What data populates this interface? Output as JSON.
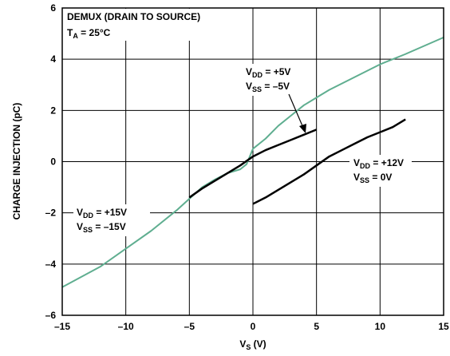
{
  "chart_data": {
    "type": "line",
    "title": "DEMUX (DRAIN TO SOURCE)",
    "subtitle": {
      "base": "T",
      "sub": "A",
      "text": " = 25°C"
    },
    "x_label": {
      "base": "V",
      "sub": "S",
      "text": " (V)"
    },
    "y_label": "CHARGE INJECTION (pC)",
    "xlim": [
      -15,
      15
    ],
    "ylim": [
      -6,
      6
    ],
    "xticks": [
      {
        "value": -15,
        "label": "–15"
      },
      {
        "value": -10,
        "label": "–10"
      },
      {
        "value": -5,
        "label": "–5"
      },
      0,
      5,
      10,
      15
    ],
    "yticks": [
      {
        "value": -6,
        "label": "–6"
      },
      {
        "value": -4,
        "label": "–4"
      },
      {
        "value": -2,
        "label": "–2"
      },
      0,
      2,
      4,
      6
    ],
    "grid": true,
    "series": [
      {
        "color": "#5fae90",
        "x": [
          -15,
          -12,
          -10,
          -8,
          -6,
          -5,
          -4,
          -3,
          -2,
          -1,
          -0.5,
          0,
          1,
          2,
          3,
          4,
          5,
          6,
          8,
          10,
          12,
          15
        ],
        "values": [
          -4.9,
          -4.1,
          -3.4,
          -2.7,
          -1.9,
          -1.45,
          -1.0,
          -0.7,
          -0.45,
          -0.3,
          -0.1,
          0.5,
          0.9,
          1.4,
          1.8,
          2.2,
          2.5,
          2.8,
          3.3,
          3.8,
          4.2,
          4.85
        ]
      },
      {
        "color": "#000000",
        "x": [
          -5,
          -4,
          -3,
          -2,
          -1,
          0,
          1,
          2,
          3,
          4,
          5
        ],
        "values": [
          -1.4,
          -1.05,
          -0.75,
          -0.45,
          -0.15,
          0.2,
          0.45,
          0.65,
          0.85,
          1.05,
          1.25
        ]
      },
      {
        "color": "#000000",
        "x": [
          0,
          1,
          2,
          3,
          4,
          5,
          6,
          7,
          8,
          9,
          10,
          11,
          12
        ],
        "values": [
          -1.65,
          -1.4,
          -1.1,
          -0.8,
          -0.5,
          -0.15,
          0.2,
          0.45,
          0.7,
          0.95,
          1.15,
          1.35,
          1.65
        ]
      }
    ],
    "annotations": [
      [
        {
          "base": "V",
          "sub": "DD",
          "text": " = +5V"
        },
        {
          "base": "V",
          "sub": "SS",
          "text": " = –5V"
        }
      ],
      [
        {
          "base": "V",
          "sub": "DD",
          "text": " = +12V"
        },
        {
          "base": "V",
          "sub": "SS",
          "text": " = 0V"
        }
      ],
      [
        {
          "base": "V",
          "sub": "DD",
          "text": " = +15V"
        },
        {
          "base": "V",
          "sub": "SS",
          "text": " = –15V"
        }
      ]
    ]
  }
}
